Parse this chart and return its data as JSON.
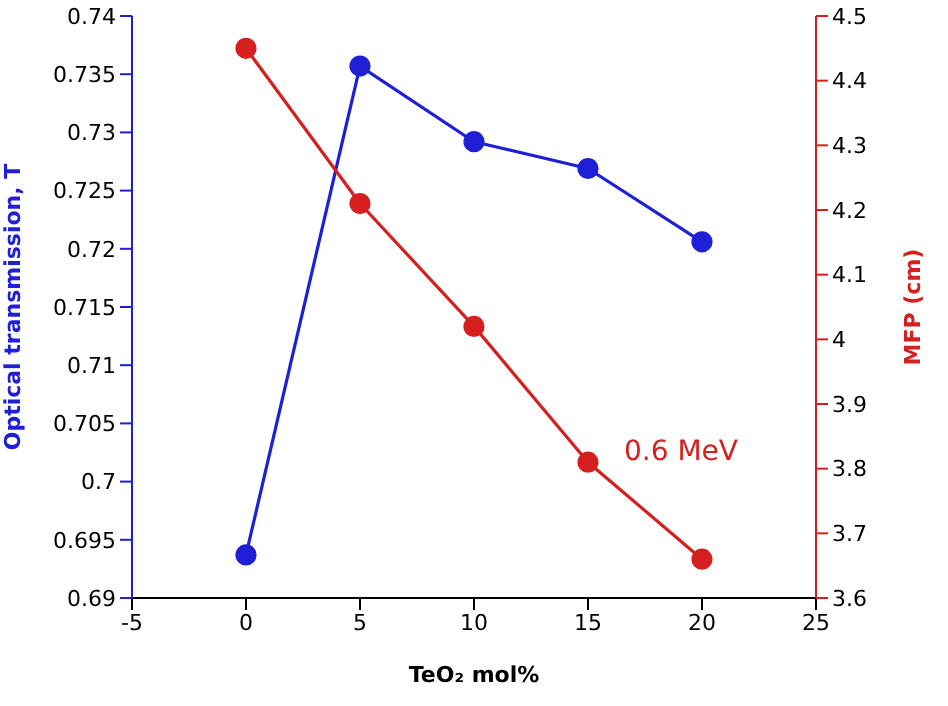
{
  "chart_data": {
    "type": "line",
    "xlabel": "TeO₂ mol%",
    "ylabel": "Optical transmission, T",
    "y2label": "MFP (cm)",
    "x": [
      0,
      5,
      10,
      15,
      20
    ],
    "series": [
      {
        "color": "#1f1fd6",
        "values": [
          0.6937,
          0.7357,
          0.7292,
          0.7269,
          0.7206
        ]
      },
      {
        "color": "#d61f1f",
        "values": [
          4.45,
          4.21,
          4.02,
          3.81,
          3.66
        ],
        "axis": "y2"
      }
    ],
    "xlim": [
      -5,
      25
    ],
    "xticks": [
      -5,
      0,
      5,
      10,
      15,
      20,
      25
    ],
    "ylim": [
      0.69,
      0.74
    ],
    "yticks": [
      0.69,
      0.695,
      0.7,
      0.705,
      0.71,
      0.715,
      0.72,
      0.725,
      0.73,
      0.735,
      0.74
    ],
    "y2lim": [
      3.6,
      4.5
    ],
    "y2ticks": [
      3.6,
      3.7,
      3.8,
      3.9,
      4,
      4.1,
      4.2,
      4.3,
      4.4,
      4.5
    ],
    "annotations": [
      "0.6 MeV"
    ],
    "marker": "circle",
    "line_style": "solid",
    "grid": false
  }
}
